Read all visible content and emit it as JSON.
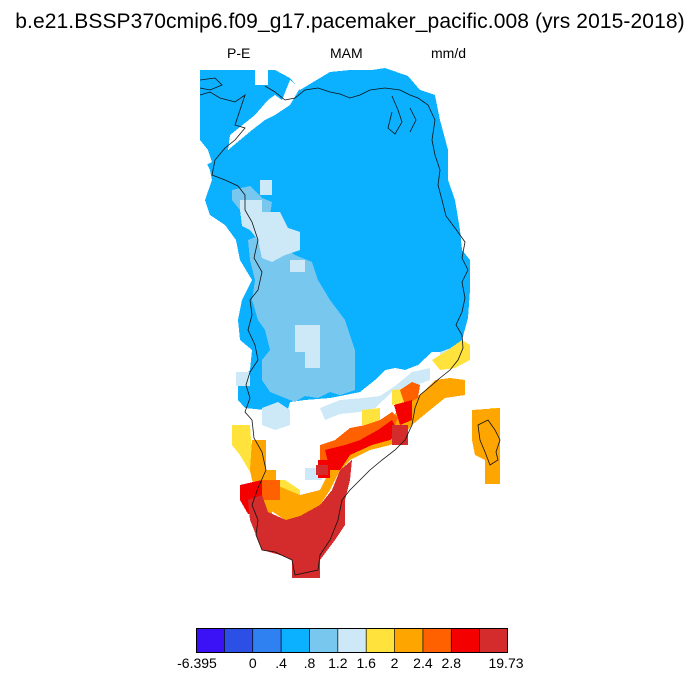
{
  "title": "b.e21.BSSP370cmip6.f09_g17.pacemaker_pacific.008 (yrs 2015-2018)",
  "subtitle": {
    "variable": "P-E",
    "season": "MAM",
    "units": "mm/d"
  },
  "colorbar": {
    "colors": [
      "#3b12f5",
      "#2c50e6",
      "#2f80f0",
      "#0bb0ff",
      "#78c7ef",
      "#cde9f8",
      "#ffe23c",
      "#ffa500",
      "#ff6000",
      "#f50000",
      "#d42c2c"
    ],
    "labels": [
      "-6.395",
      "0",
      ".4",
      ".8",
      "1.2",
      "1.6",
      "2",
      "2.4",
      "2.8",
      "19.73"
    ]
  },
  "map": {
    "region": "Greenland",
    "projection": "polar stereographic"
  }
}
